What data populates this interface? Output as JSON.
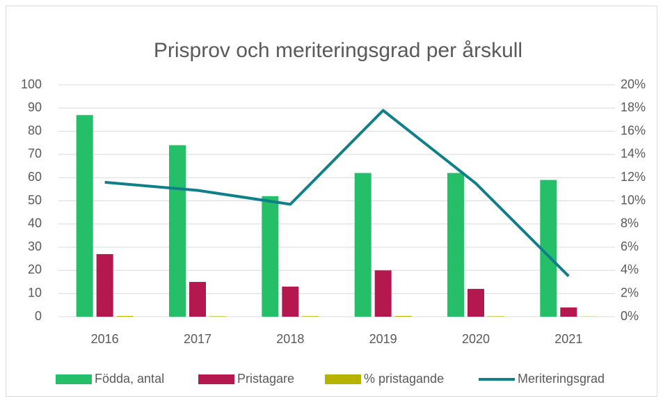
{
  "chart_data": {
    "type": "bar-line",
    "title": "Prisprov och meriteringsgrad per årskull",
    "categories": [
      "2016",
      "2017",
      "2018",
      "2019",
      "2020",
      "2021"
    ],
    "series": [
      {
        "name": "Födda, antal",
        "color": "#25bf6a",
        "type": "bar",
        "values": [
          87,
          74,
          52,
          62,
          62,
          59
        ]
      },
      {
        "name": "Pristagare",
        "color": "#b3194e",
        "type": "bar",
        "values": [
          27,
          15,
          13,
          20,
          12,
          4
        ]
      },
      {
        "name": "% pristagande",
        "color": "#b5b300",
        "type": "bar",
        "values": [
          0.31,
          0.2,
          0.25,
          0.32,
          0.19,
          0.07
        ]
      },
      {
        "name": "Meriteringsgrad",
        "color": "#0f7f8a",
        "type": "line",
        "axis": "y2",
        "values": [
          11.6,
          10.9,
          9.7,
          17.8,
          11.5,
          3.5
        ]
      }
    ],
    "ylim": [
      0,
      100
    ],
    "yticks": [
      0,
      10,
      20,
      30,
      40,
      50,
      60,
      70,
      80,
      90,
      100
    ],
    "y2lim": [
      0,
      20
    ],
    "y2ticks": [
      {
        "value": 0,
        "label": "0%"
      },
      {
        "value": 2,
        "label": "2%"
      },
      {
        "value": 4,
        "label": "4%"
      },
      {
        "value": 6,
        "label": "6%"
      },
      {
        "value": 8,
        "label": "8%"
      },
      {
        "value": 10,
        "label": "10%"
      },
      {
        "value": 12,
        "label": "12%"
      },
      {
        "value": 14,
        "label": "14%"
      },
      {
        "value": 16,
        "label": "16%"
      },
      {
        "value": 18,
        "label": "18%"
      },
      {
        "value": 20,
        "label": "20%"
      }
    ],
    "grid": true,
    "legend": "bottom"
  }
}
